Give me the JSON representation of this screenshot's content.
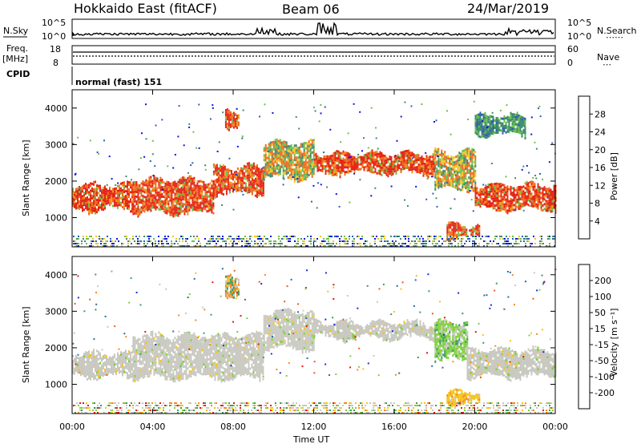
{
  "header": {
    "station": "Hokkaido East (fitACF)",
    "beam": "Beam 06",
    "date": "24/Mar/2019"
  },
  "strips": {
    "nsky_label": "N.Sky",
    "nsky_ticks": [
      "10^5",
      "10^0"
    ],
    "nsearch_label": "N.Search",
    "nsearch_ticks": [
      "10^5",
      "10^0"
    ],
    "freq_label": "Freq.",
    "freq_unit": "[MHz]",
    "freq_ticks": [
      "18",
      "8"
    ],
    "nave_label": "Nave",
    "nave_ticks": [
      "60",
      "0"
    ],
    "cpid_label": "CPID",
    "cpid_text": "normal (fast) 151"
  },
  "chart_data": [
    {
      "type": "heatmap",
      "parameter": "power",
      "ylabel": "Slant Range [km]",
      "ylim": [
        200,
        4500
      ],
      "yticks": [
        "1000",
        "2000",
        "3000",
        "4000"
      ],
      "xlim_hours": [
        0,
        24
      ],
      "colorbar": {
        "label": "Power [dB]",
        "ticks": [
          "4",
          "8",
          "12",
          "16",
          "20",
          "24",
          "28"
        ],
        "colors": [
          "#0a14e6",
          "#2e5fb0",
          "#3d8a6e",
          "#6cbf4a",
          "#f2c628",
          "#f09b23",
          "#ef6a1e",
          "#e52516"
        ]
      },
      "bands": [
        {
          "start": 0.0,
          "end": 3.0,
          "lower": 1250,
          "upper": 1900,
          "level": "high"
        },
        {
          "start": 3.0,
          "end": 7.0,
          "lower": 1150,
          "upper": 2050,
          "level": "high"
        },
        {
          "start": 7.0,
          "end": 9.5,
          "lower": 1700,
          "upper": 2400,
          "level": "high"
        },
        {
          "start": 9.5,
          "end": 12.0,
          "lower": 2100,
          "upper": 3050,
          "level": "medium"
        },
        {
          "start": 12.0,
          "end": 18.0,
          "lower": 2250,
          "upper": 2750,
          "level": "high"
        },
        {
          "start": 18.0,
          "end": 20.0,
          "lower": 1800,
          "upper": 2800,
          "level": "medium"
        },
        {
          "start": 20.0,
          "end": 24.0,
          "lower": 1250,
          "upper": 1900,
          "level": "high"
        }
      ],
      "patches": [
        {
          "start": 7.6,
          "end": 8.3,
          "lower": 3500,
          "upper": 3900,
          "level": "high"
        },
        {
          "start": 18.6,
          "end": 20.2,
          "lower": 500,
          "upper": 800,
          "level": "high"
        },
        {
          "start": 20.0,
          "end": 22.5,
          "lower": 3300,
          "upper": 3800,
          "level": "low"
        }
      ]
    },
    {
      "type": "heatmap",
      "parameter": "velocity",
      "ylabel": "Slant Range [km]",
      "ylim": [
        200,
        4500
      ],
      "yticks": [
        "1000",
        "2000",
        "3000",
        "4000"
      ],
      "xlim_hours": [
        0,
        24
      ],
      "colorbar": {
        "label": "Velocity [m s⁻¹]",
        "ticks": [
          "200",
          "100",
          "50",
          "15",
          "-15",
          "-50",
          "-100",
          "-200"
        ],
        "colors": [
          "#1c2fd6",
          "#2f6b9a",
          "#3c9a5a",
          "#7dcf3a",
          "#c8c8c0",
          "#f5c316",
          "#f58a1c",
          "#f05a1c",
          "#e01a12"
        ]
      },
      "bands": [
        {
          "start": 0.0,
          "end": 3.0,
          "lower": 1250,
          "upper": 1850,
          "level": "ground"
        },
        {
          "start": 3.0,
          "end": 9.5,
          "lower": 1200,
          "upper": 2350,
          "level": "ground"
        },
        {
          "start": 9.5,
          "end": 12.0,
          "lower": 2000,
          "upper": 3000,
          "level": "ground"
        },
        {
          "start": 12.0,
          "end": 18.0,
          "lower": 2300,
          "upper": 2700,
          "level": "ground"
        },
        {
          "start": 18.0,
          "end": 19.6,
          "lower": 1700,
          "upper": 2700,
          "level": "positive"
        },
        {
          "start": 19.6,
          "end": 24.0,
          "lower": 1250,
          "upper": 1950,
          "level": "ground"
        }
      ],
      "patches": [
        {
          "start": 7.6,
          "end": 8.3,
          "lower": 3500,
          "upper": 3900,
          "level": "mixed"
        },
        {
          "start": 18.6,
          "end": 20.2,
          "lower": 500,
          "upper": 800,
          "level": "negative"
        }
      ]
    }
  ],
  "xaxis": {
    "label": "Time UT",
    "ticks": [
      "00:00",
      "04:00",
      "08:00",
      "12:00",
      "16:00",
      "20:00",
      "00:00"
    ]
  }
}
